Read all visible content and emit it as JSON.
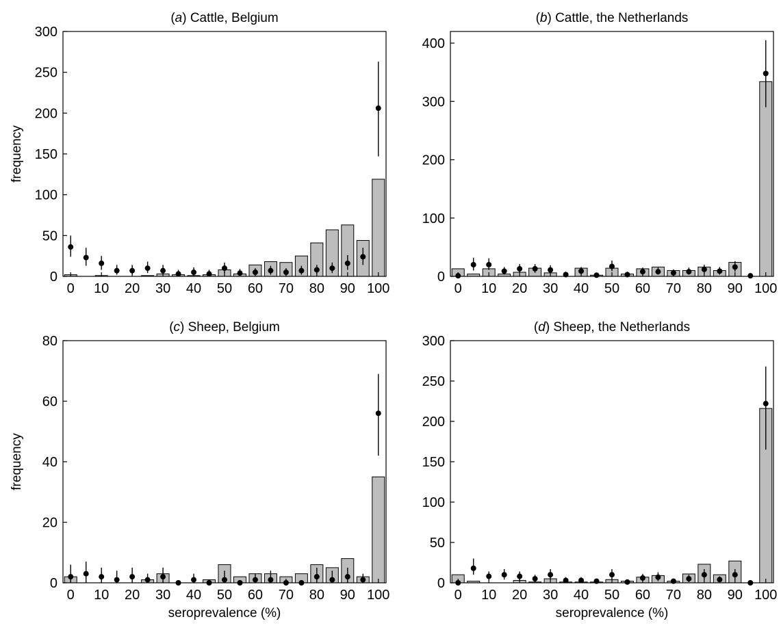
{
  "colors": {
    "bar_fill": "#bdbdbd",
    "bar_stroke": "#000000",
    "point": "#000000",
    "errorbar": "#000000",
    "background": "#ffffff"
  },
  "chart_data": [
    {
      "type": "bar",
      "panel": "a",
      "title_prefix": "(",
      "title_letter": "a",
      "title_rest": ") Cattle, Belgium",
      "xlabel": "",
      "ylabel": "frequency",
      "xlim": [
        -2.5,
        102.5
      ],
      "ylim": [
        0,
        300
      ],
      "yticks": [
        0,
        50,
        100,
        150,
        200,
        250,
        300
      ],
      "xticks": [
        0,
        10,
        20,
        30,
        40,
        50,
        60,
        70,
        80,
        90,
        100
      ],
      "x": [
        0,
        5,
        10,
        15,
        20,
        25,
        30,
        35,
        40,
        45,
        50,
        55,
        60,
        65,
        70,
        75,
        80,
        85,
        90,
        95,
        100
      ],
      "series": [
        {
          "kind": "bar",
          "values": [
            2,
            0,
            1,
            0,
            0,
            1,
            3,
            2,
            1,
            2,
            8,
            3,
            14,
            18,
            17,
            25,
            41,
            57,
            63,
            44,
            119
          ]
        },
        {
          "kind": "point",
          "values": [
            36,
            23,
            16,
            7,
            7,
            10,
            7,
            3,
            5,
            3,
            10,
            4,
            5,
            7,
            5,
            7,
            8,
            10,
            16,
            24,
            206
          ],
          "lower": [
            24,
            13,
            8,
            2,
            2,
            4,
            2,
            0,
            1,
            0,
            4,
            1,
            1,
            2,
            1,
            2,
            3,
            4,
            8,
            14,
            147
          ],
          "upper": [
            50,
            35,
            25,
            14,
            14,
            18,
            14,
            8,
            11,
            8,
            17,
            9,
            10,
            13,
            10,
            13,
            14,
            17,
            26,
            35,
            263
          ]
        }
      ]
    },
    {
      "type": "bar",
      "panel": "b",
      "title_prefix": "(",
      "title_letter": "b",
      "title_rest": ") Cattle, the Netherlands",
      "xlabel": "",
      "ylabel": "",
      "xlim": [
        -2.5,
        102.5
      ],
      "ylim": [
        0,
        420
      ],
      "yticks": [
        0,
        100,
        200,
        300,
        400
      ],
      "xticks": [
        0,
        10,
        20,
        30,
        40,
        50,
        60,
        70,
        80,
        90,
        100
      ],
      "x": [
        0,
        5,
        10,
        15,
        20,
        25,
        30,
        35,
        40,
        45,
        50,
        55,
        60,
        65,
        70,
        75,
        80,
        85,
        90,
        95,
        100
      ],
      "series": [
        {
          "kind": "bar",
          "values": [
            13,
            4,
            13,
            4,
            7,
            14,
            6,
            0,
            14,
            2,
            14,
            4,
            13,
            16,
            10,
            10,
            16,
            10,
            24,
            0,
            334
          ]
        },
        {
          "kind": "point",
          "values": [
            1,
            20,
            20,
            9,
            13,
            13,
            11,
            3,
            9,
            2,
            17,
            3,
            8,
            8,
            6,
            8,
            12,
            9,
            16,
            1,
            348
          ],
          "lower": [
            0,
            10,
            11,
            3,
            6,
            6,
            5,
            0,
            3,
            0,
            9,
            0,
            3,
            3,
            1,
            3,
            5,
            3,
            8,
            0,
            290
          ],
          "upper": [
            3,
            32,
            31,
            16,
            21,
            21,
            19,
            8,
            16,
            6,
            27,
            8,
            15,
            15,
            12,
            15,
            20,
            16,
            26,
            4,
            405
          ]
        }
      ]
    },
    {
      "type": "bar",
      "panel": "c",
      "title_prefix": "(",
      "title_letter": "c",
      "title_rest": ") Sheep, Belgium",
      "xlabel": "seroprevalence (%)",
      "ylabel": "frequency",
      "xlim": [
        -2.5,
        102.5
      ],
      "ylim": [
        0,
        80
      ],
      "yticks": [
        0,
        20,
        40,
        60,
        80
      ],
      "xticks": [
        0,
        10,
        20,
        30,
        40,
        50,
        60,
        70,
        80,
        90,
        100
      ],
      "x": [
        0,
        5,
        10,
        15,
        20,
        25,
        30,
        35,
        40,
        45,
        50,
        55,
        60,
        65,
        70,
        75,
        80,
        85,
        90,
        95,
        100
      ],
      "series": [
        {
          "kind": "bar",
          "values": [
            2,
            0,
            0,
            0,
            0,
            1,
            3,
            0,
            0,
            1,
            6,
            2,
            3,
            3,
            2,
            3,
            6,
            5,
            8,
            2,
            35
          ]
        },
        {
          "kind": "point",
          "values": [
            2,
            3,
            2,
            1,
            2,
            1,
            2,
            0,
            1,
            0,
            1,
            0,
            1,
            1,
            0,
            0,
            2,
            1,
            2,
            1,
            56
          ],
          "lower": [
            0,
            0,
            0,
            0,
            0,
            0,
            0,
            0,
            0,
            0,
            0,
            0,
            0,
            0,
            0,
            0,
            0,
            0,
            0,
            0,
            42
          ],
          "upper": [
            6,
            7,
            5,
            4,
            5,
            3,
            5,
            0,
            3,
            0,
            4,
            0,
            3,
            4,
            0,
            0,
            5,
            4,
            5,
            3,
            69
          ]
        }
      ]
    },
    {
      "type": "bar",
      "panel": "d",
      "title_prefix": "(",
      "title_letter": "d",
      "title_rest": ") Sheep, the Netherlands",
      "xlabel": "seroprevalence (%)",
      "ylabel": "",
      "xlim": [
        -2.5,
        102.5
      ],
      "ylim": [
        0,
        300
      ],
      "yticks": [
        0,
        50,
        100,
        150,
        200,
        250,
        300
      ],
      "xticks": [
        0,
        10,
        20,
        30,
        40,
        50,
        60,
        70,
        80,
        90,
        100
      ],
      "x": [
        0,
        5,
        10,
        15,
        20,
        25,
        30,
        35,
        40,
        45,
        50,
        55,
        60,
        65,
        70,
        75,
        80,
        85,
        90,
        95,
        100
      ],
      "series": [
        {
          "kind": "bar",
          "values": [
            10,
            2,
            0,
            0,
            3,
            1,
            5,
            1,
            1,
            1,
            4,
            2,
            7,
            9,
            2,
            11,
            23,
            10,
            27,
            0,
            216
          ]
        },
        {
          "kind": "point",
          "values": [
            0,
            18,
            8,
            10,
            8,
            5,
            10,
            3,
            3,
            2,
            10,
            1,
            6,
            7,
            2,
            5,
            10,
            4,
            10,
            0,
            222
          ],
          "lower": [
            0,
            10,
            3,
            4,
            3,
            1,
            4,
            0,
            0,
            0,
            4,
            0,
            2,
            2,
            0,
            1,
            4,
            1,
            4,
            0,
            165
          ],
          "upper": [
            2,
            30,
            14,
            17,
            14,
            10,
            17,
            7,
            7,
            5,
            17,
            4,
            11,
            13,
            5,
            10,
            17,
            8,
            17,
            2,
            268
          ]
        }
      ]
    }
  ]
}
